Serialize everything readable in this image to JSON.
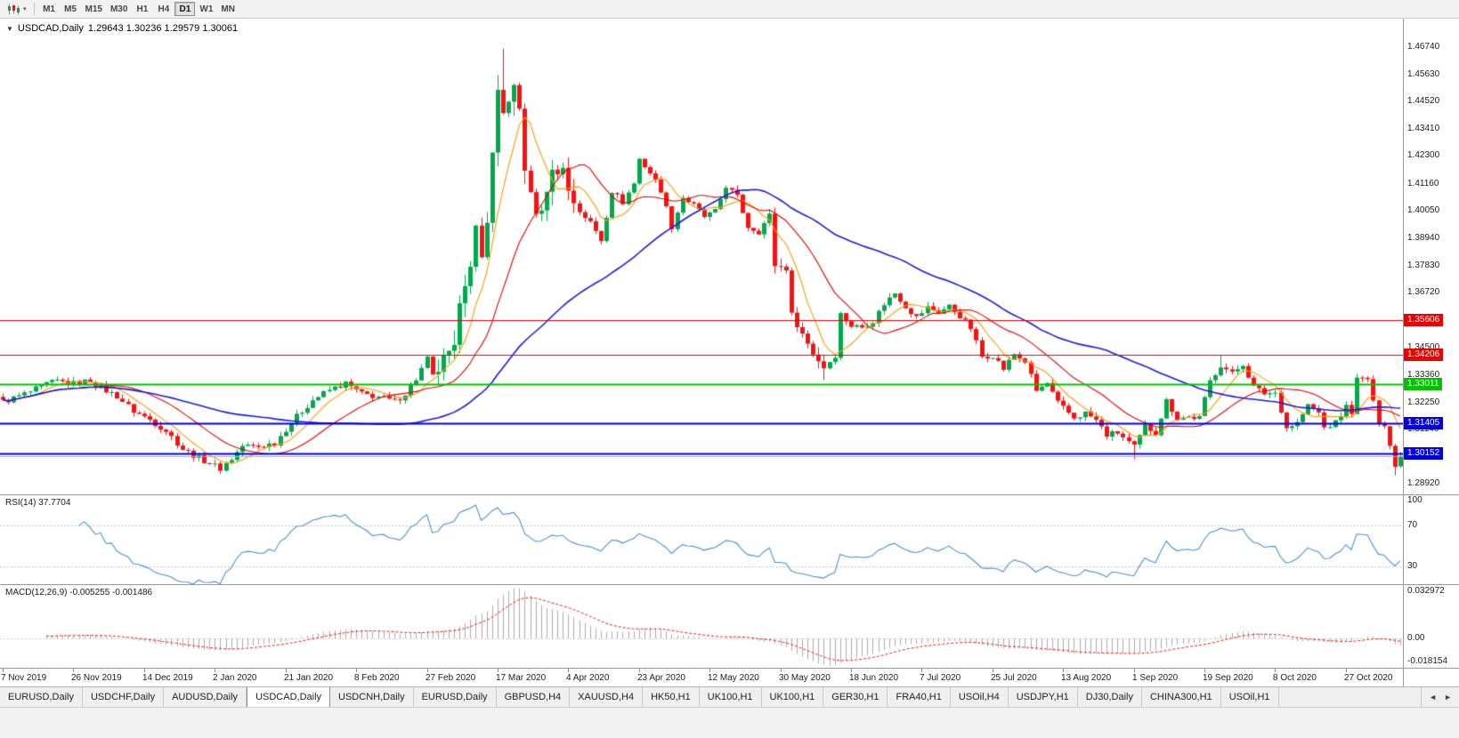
{
  "header": {
    "marker_icon": "▼",
    "title": "USDCAD,Daily",
    "ohlc": "1.29643 1.30236 1.29579 1.30061"
  },
  "toolbar": {
    "dropdown_icon": "▾",
    "timeframes": [
      "M1",
      "M5",
      "M15",
      "M30",
      "H1",
      "H4",
      "D1",
      "W1",
      "MN"
    ],
    "active_timeframe": "D1"
  },
  "indicators": {
    "rsi": {
      "label": "RSI(14) 37.7704",
      "period": 14,
      "levels": [
        100,
        70,
        30
      ],
      "level_lines": [
        70,
        30
      ],
      "color": "#4a90d2",
      "range": [
        13,
        100
      ]
    },
    "macd": {
      "label": "MACD(12,26,9) -0.005255 -0.001486",
      "fast": 12,
      "slow": 26,
      "signal": 9,
      "scale_labels": [
        "0.032972",
        "0.00",
        "-0.018154"
      ],
      "range": [
        -0.018154,
        0.032972
      ],
      "histogram_color": "#ababab",
      "signal_color": "#f01616"
    }
  },
  "tabs": {
    "items": [
      "EURUSD,Daily",
      "USDCHF,Daily",
      "AUDUSD,Daily",
      "USDCAD,Daily",
      "USDCNH,Daily",
      "EURUSD,Daily",
      "GBPUSD,H4",
      "XAUUSD,H4",
      "HK50,H1",
      "UK100,H1",
      "UK100,H1",
      "GER30,H1",
      "FRA40,H1",
      "USOil,H4",
      "USDJPY,H1",
      "DJ30,Daily",
      "CHINA300,H1",
      "USOil,H1"
    ],
    "active_index": 3,
    "scroll_left": "◄",
    "scroll_right": "►"
  },
  "chart_data": {
    "type": "candlestick",
    "symbol": "USDCAD",
    "period": "Daily",
    "last_ohlc": {
      "open": 1.29643,
      "high": 1.30236,
      "low": 1.29579,
      "close": 1.30061
    },
    "n_bars": 258,
    "bars_per_tick": 13,
    "date_ticks": [
      "7 Nov 2019",
      "26 Nov 2019",
      "14 Dec 2019",
      "2 Jan 2020",
      "21 Jan 2020",
      "8 Feb 2020",
      "27 Feb 2020",
      "17 Mar 2020",
      "4 Apr 2020",
      "23 Apr 2020",
      "12 May 2020",
      "30 May 2020",
      "18 Jun 2020",
      "7 Jul 2020",
      "25 Jul 2020",
      "13 Aug 2020",
      "1 Sep 2020",
      "19 Sep 2020",
      "8 Oct 2020",
      "27 Oct 2020"
    ],
    "y_range": [
      1.285,
      1.479
    ],
    "price_labels": [
      "1.46740",
      "1.45630",
      "1.44520",
      "1.43410",
      "1.42300",
      "1.41160",
      "1.40050",
      "1.38940",
      "1.37830",
      "1.36720",
      "1.34500",
      "1.33360",
      "1.32250",
      "1.31140",
      "1.28920"
    ],
    "hlines": [
      {
        "price": 1.35606,
        "color": "#ee0000",
        "width": 1,
        "label": "1.35606"
      },
      {
        "price": 1.34206,
        "color": "#ee0000",
        "width": 1,
        "label": "1.34206"
      },
      {
        "price": 1.33011,
        "color": "#00c300",
        "width": 2,
        "label": "1.33011"
      },
      {
        "price": 1.31405,
        "color": "#0000e0",
        "width": 2,
        "label": "1.31405"
      },
      {
        "price": 1.30152,
        "color": "#0000e0",
        "width": 2,
        "label": "1.30152"
      }
    ],
    "current_price_line": {
      "price": 1.30061,
      "color": "#b0b0b0"
    },
    "moving_averages": [
      {
        "period": 7,
        "color": "#ff9900"
      },
      {
        "period": 18,
        "color": "#e60000"
      },
      {
        "period": 50,
        "color": "#1a1ae6"
      }
    ],
    "up_color": "#00a94c",
    "down_color": "#f61212",
    "price_path": [
      [
        0,
        1.3228
      ],
      [
        2,
        1.3242
      ],
      [
        5,
        1.3268
      ],
      [
        8,
        1.33
      ],
      [
        10,
        1.3312
      ],
      [
        13,
        1.3302
      ],
      [
        16,
        1.3315
      ],
      [
        18,
        1.3285
      ],
      [
        21,
        1.325
      ],
      [
        24,
        1.319
      ],
      [
        27,
        1.3155
      ],
      [
        30,
        1.311
      ],
      [
        33,
        1.3035
      ],
      [
        36,
        1.2998
      ],
      [
        38,
        1.2978
      ],
      [
        40,
        1.2955
      ],
      [
        42,
        1.2995
      ],
      [
        44,
        1.3048
      ],
      [
        47,
        1.3045
      ],
      [
        50,
        1.306
      ],
      [
        53,
        1.3145
      ],
      [
        55,
        1.319
      ],
      [
        57,
        1.3235
      ],
      [
        60,
        1.3275
      ],
      [
        63,
        1.3302
      ],
      [
        66,
        1.326
      ],
      [
        69,
        1.3248
      ],
      [
        72,
        1.3228
      ],
      [
        74,
        1.3262
      ],
      [
        76,
        1.332
      ],
      [
        78,
        1.3402
      ],
      [
        79,
        1.333
      ],
      [
        81,
        1.3392
      ],
      [
        83,
        1.3428
      ],
      [
        84,
        1.366
      ],
      [
        85,
        1.3728
      ],
      [
        86,
        1.3762
      ],
      [
        87,
        1.3918
      ],
      [
        88,
        1.3805
      ],
      [
        89,
        1.3988
      ],
      [
        90,
        1.4228
      ],
      [
        91,
        1.45
      ],
      [
        92,
        1.442
      ],
      [
        93,
        1.4435
      ],
      [
        94,
        1.449
      ],
      [
        95,
        1.4415
      ],
      [
        96,
        1.419
      ],
      [
        97,
        1.4062
      ],
      [
        98,
        1.3992
      ],
      [
        100,
        1.4058
      ],
      [
        101,
        1.4198
      ],
      [
        102,
        1.414
      ],
      [
        103,
        1.4208
      ],
      [
        104,
        1.4082
      ],
      [
        106,
        1.4005
      ],
      [
        108,
        1.3958
      ],
      [
        110,
        1.3888
      ],
      [
        112,
        1.4088
      ],
      [
        114,
        1.4042
      ],
      [
        116,
        1.4118
      ],
      [
        117,
        1.4218
      ],
      [
        119,
        1.4162
      ],
      [
        121,
        1.4092
      ],
      [
        123,
        1.3942
      ],
      [
        125,
        1.4062
      ],
      [
        127,
        1.4028
      ],
      [
        129,
        1.3982
      ],
      [
        131,
        1.4002
      ],
      [
        133,
        1.4108
      ],
      [
        135,
        1.4062
      ],
      [
        137,
        1.3942
      ],
      [
        139,
        1.3922
      ],
      [
        141,
        1.3988
      ],
      [
        142,
        1.3785
      ],
      [
        144,
        1.3772
      ],
      [
        145,
        1.3582
      ],
      [
        147,
        1.3505
      ],
      [
        149,
        1.3425
      ],
      [
        151,
        1.3368
      ],
      [
        153,
        1.3418
      ],
      [
        154,
        1.3585
      ],
      [
        156,
        1.3538
      ],
      [
        158,
        1.3532
      ],
      [
        160,
        1.3558
      ],
      [
        162,
        1.3628
      ],
      [
        164,
        1.3672
      ],
      [
        166,
        1.3618
      ],
      [
        168,
        1.3572
      ],
      [
        170,
        1.3612
      ],
      [
        172,
        1.3592
      ],
      [
        174,
        1.3618
      ],
      [
        176,
        1.3578
      ],
      [
        178,
        1.3528
      ],
      [
        180,
        1.3412
      ],
      [
        182,
        1.3418
      ],
      [
        184,
        1.3362
      ],
      [
        186,
        1.3422
      ],
      [
        188,
        1.3392
      ],
      [
        190,
        1.3272
      ],
      [
        192,
        1.3302
      ],
      [
        194,
        1.3222
      ],
      [
        197,
        1.3162
      ],
      [
        199,
        1.3182
      ],
      [
        201,
        1.3152
      ],
      [
        203,
        1.3092
      ],
      [
        205,
        1.3102
      ],
      [
        208,
        1.3042
      ],
      [
        210,
        1.3128
      ],
      [
        212,
        1.3102
      ],
      [
        214,
        1.3232
      ],
      [
        216,
        1.3162
      ],
      [
        218,
        1.3165
      ],
      [
        220,
        1.3162
      ],
      [
        222,
        1.3312
      ],
      [
        224,
        1.3378
      ],
      [
        226,
        1.3342
      ],
      [
        228,
        1.3382
      ],
      [
        230,
        1.3288
      ],
      [
        232,
        1.3262
      ],
      [
        234,
        1.3265
      ],
      [
        235,
        1.3195
      ],
      [
        236,
        1.3122
      ],
      [
        238,
        1.3142
      ],
      [
        240,
        1.3212
      ],
      [
        242,
        1.3182
      ],
      [
        243,
        1.3122
      ],
      [
        245,
        1.3142
      ],
      [
        247,
        1.3208
      ],
      [
        248,
        1.3188
      ],
      [
        249,
        1.3318
      ],
      [
        251,
        1.3322
      ],
      [
        252,
        1.3222
      ],
      [
        253,
        1.3148
      ],
      [
        254,
        1.3128
      ],
      [
        255,
        1.3048
      ],
      [
        256,
        1.2962
      ],
      [
        257,
        1.30061
      ]
    ],
    "overrides": [
      {
        "bar": 40,
        "low": 1.2934
      },
      {
        "bar": 91,
        "high": 1.456
      },
      {
        "bar": 92,
        "high": 1.4668
      },
      {
        "bar": 151,
        "low": 1.3316
      },
      {
        "bar": 208,
        "low": 1.2994
      },
      {
        "bar": 224,
        "high": 1.3418
      },
      {
        "bar": 249,
        "high": 1.3342
      },
      {
        "bar": 256,
        "low": 1.2928
      }
    ],
    "volatility": {
      "base": 0.0012,
      "wick_base": 0.0018,
      "spike": {
        "from": 80,
        "to": 105,
        "close_amp": 0.0032,
        "wick_amp": 0.006
      }
    }
  }
}
